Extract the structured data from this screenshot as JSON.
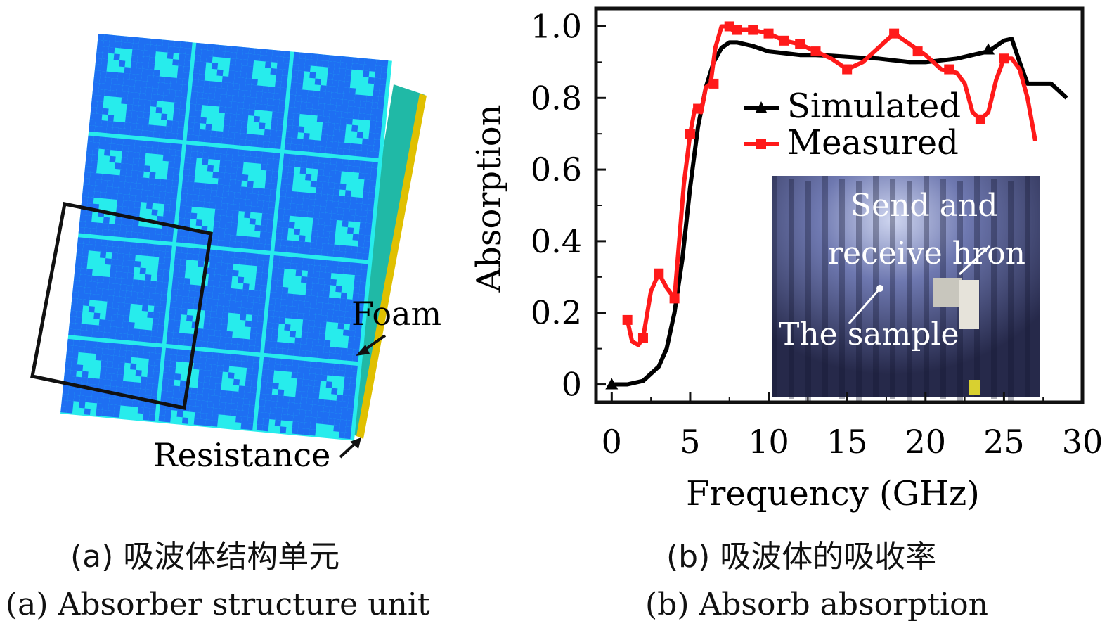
{
  "panel_a": {
    "labels": {
      "foam": "Foam",
      "resistance": "Resistance"
    },
    "colors": {
      "base": "#1aa0ff",
      "pattern": "#1e6ff2",
      "light": "#27ecec",
      "side": "#20b9a6",
      "edge": "#e0c000",
      "outline": "#111111"
    }
  },
  "chart_data": {
    "type": "line",
    "xlabel": "Frequency (GHz)",
    "ylabel": "Absorption",
    "xlim": [
      -1,
      30
    ],
    "ylim": [
      -0.05,
      1.05
    ],
    "xticks": [
      "0",
      "5",
      "10",
      "15",
      "20",
      "25",
      "30"
    ],
    "yticks": [
      "0",
      "0.2",
      "0.4",
      "0.6",
      "0.8",
      "1.0"
    ],
    "grid": false,
    "legend_position": "upper-right",
    "series": [
      {
        "name": "Simulated",
        "color": "#000000",
        "marker": "triangle",
        "x": [
          0,
          1,
          2,
          3,
          3.5,
          4,
          4.5,
          5,
          5.5,
          6,
          6.5,
          7,
          7.5,
          8,
          9,
          10,
          11,
          12,
          13,
          14,
          15,
          16,
          17,
          18,
          19,
          20,
          21,
          22,
          23,
          24,
          25,
          25.5,
          26,
          26.5,
          27,
          28,
          29
        ],
        "y": [
          0.0,
          0.0,
          0.01,
          0.05,
          0.1,
          0.2,
          0.35,
          0.55,
          0.72,
          0.83,
          0.9,
          0.94,
          0.955,
          0.955,
          0.945,
          0.93,
          0.925,
          0.92,
          0.92,
          0.918,
          0.915,
          0.912,
          0.91,
          0.905,
          0.9,
          0.9,
          0.905,
          0.91,
          0.92,
          0.93,
          0.96,
          0.965,
          0.9,
          0.84,
          0.84,
          0.84,
          0.8
        ],
        "markers_x": [
          0,
          24
        ],
        "markers_y": [
          0.0,
          0.935
        ]
      },
      {
        "name": "Measured",
        "color": "#ff1a1a",
        "marker": "square",
        "x": [
          1,
          1.3,
          1.7,
          2,
          2.5,
          3,
          3.5,
          4,
          4.3,
          4.6,
          5,
          5.3,
          5.7,
          6,
          6.3,
          6.6,
          7,
          7.3,
          7.7,
          8,
          9,
          10,
          11,
          12,
          13,
          14,
          15,
          16,
          17,
          18,
          19,
          20,
          21,
          22,
          22.5,
          23,
          23.5,
          24,
          24.5,
          25,
          25.5,
          26,
          26.5,
          27
        ],
        "y": [
          0.18,
          0.12,
          0.11,
          0.13,
          0.26,
          0.31,
          0.27,
          0.24,
          0.4,
          0.56,
          0.7,
          0.77,
          0.76,
          0.83,
          0.84,
          0.94,
          1.0,
          1.0,
          0.99,
          0.99,
          0.99,
          0.98,
          0.96,
          0.95,
          0.93,
          0.91,
          0.88,
          0.9,
          0.94,
          0.98,
          0.95,
          0.92,
          0.88,
          0.87,
          0.84,
          0.76,
          0.74,
          0.76,
          0.85,
          0.91,
          0.91,
          0.88,
          0.8,
          0.68
        ],
        "markers_x": [
          1,
          2,
          3,
          4,
          5,
          5.5,
          6.5,
          7.5,
          8,
          9,
          10,
          11,
          12,
          13,
          15,
          18,
          19.5,
          21.5,
          23.5,
          25
        ],
        "markers_y": [
          0.18,
          0.13,
          0.31,
          0.24,
          0.7,
          0.77,
          0.84,
          1.0,
          0.99,
          0.99,
          0.98,
          0.96,
          0.95,
          0.93,
          0.88,
          0.98,
          0.93,
          0.88,
          0.74,
          0.91
        ]
      }
    ],
    "inset": {
      "texts": [
        "Send and",
        "receive hron",
        "The sample"
      ]
    }
  },
  "captions": {
    "a_zh": "(a) 吸波体结构单元",
    "a_en": "(a) Absorber structure unit",
    "b_zh": "(b) 吸波体的吸收率",
    "b_en": "(b) Absorb absorption"
  }
}
